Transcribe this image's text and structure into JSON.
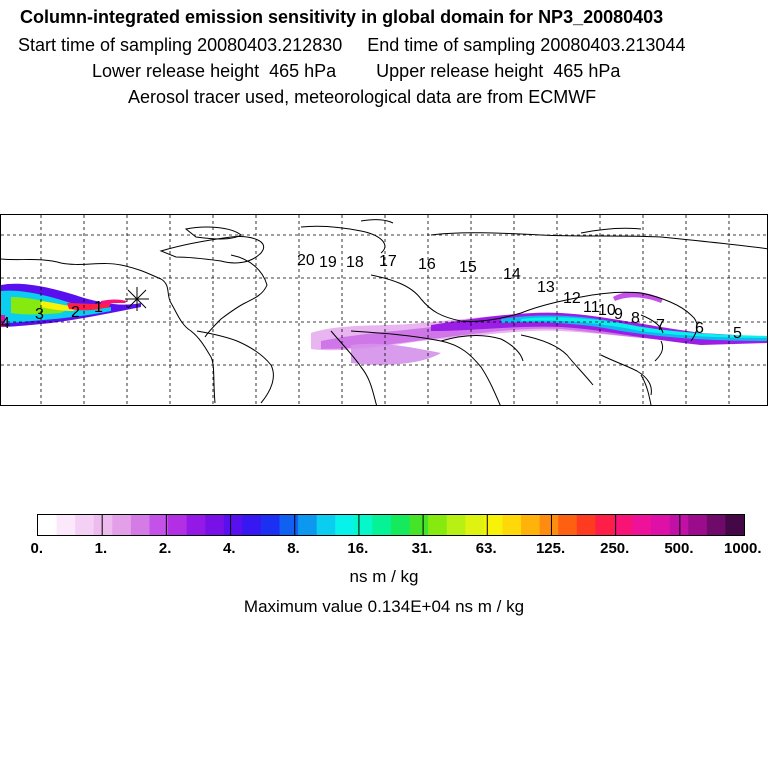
{
  "header": {
    "title": "Column-integrated emission sensitivity in global domain for NP3_20080403",
    "line2": "Start time of sampling 20080403.212830     End time of sampling 20080403.213044",
    "line3": "Lower release height  465 hPa        Upper release height  465 hPa",
    "line4": "Aerosol tracer used, meteorological data are from ECMWF"
  },
  "map": {
    "labels": [
      "20",
      "19",
      "18",
      "17",
      "16",
      "15",
      "14",
      "13",
      "12",
      "11",
      "10",
      "9",
      "8",
      "7",
      "6",
      "5",
      "4",
      "3",
      "2",
      "1"
    ],
    "release_marker_icon": "asterisk-marker"
  },
  "colorbar": {
    "ticks": [
      "0.",
      "1.",
      "2.",
      "4.",
      "8.",
      "16.",
      "31.",
      "63.",
      "125.",
      "250.",
      "500.",
      "1000."
    ],
    "colors": [
      "#ffffff",
      "#fbe8fb",
      "#f5d0f5",
      "#eebbee",
      "#e39fe8",
      "#d57be6",
      "#c452e8",
      "#b22fe6",
      "#9418e6",
      "#7a10e8",
      "#5a10ee",
      "#3818f2",
      "#1c30f4",
      "#1060f2",
      "#0c98ef",
      "#0acdef",
      "#08f2ec",
      "#06f7c8",
      "#06f296",
      "#14ea5c",
      "#46e428",
      "#86ea10",
      "#b8f014",
      "#def410",
      "#f8f208",
      "#fed808",
      "#feb20a",
      "#fe8c10",
      "#fe6012",
      "#fe3a20",
      "#fe1e48",
      "#f81476",
      "#ee129a",
      "#de10a8",
      "#c010a6",
      "#9a0c8c",
      "#700a6a",
      "#440846"
    ],
    "units": "ns m / kg",
    "maximum": "Maximum value  0.134E+04 ns m / kg"
  }
}
